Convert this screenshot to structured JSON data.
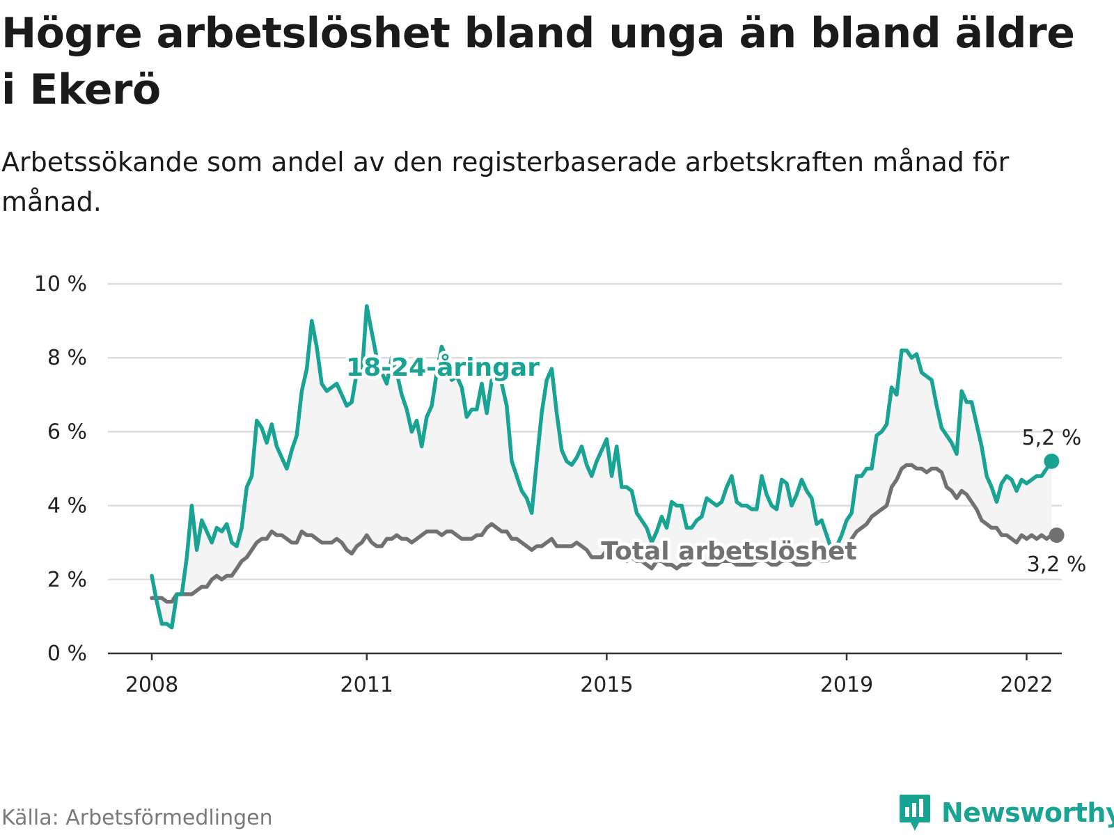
{
  "title": "Högre arbetslöshet bland unga än bland äldre i Ekerö",
  "subtitle": "Arbetssökande som andel av den registerbaserade arbetskraften månad för månad.",
  "source": "Källa: Arbetsförmedlingen",
  "brand": "Newsworthy",
  "colors": {
    "youth": "#18a393",
    "total": "#737073",
    "fill": "#f4f4f4",
    "grid": "#dcdcdc",
    "axis": "#333333"
  },
  "chart_data": {
    "type": "line",
    "title": "Högre arbetslöshet bland unga än bland äldre i Ekerö",
    "xlabel": "",
    "ylabel": "",
    "ylim": [
      0,
      10
    ],
    "yticks": [
      {
        "value": 0,
        "label": "0 %"
      },
      {
        "value": 2,
        "label": "2 %"
      },
      {
        "value": 4,
        "label": "4 %"
      },
      {
        "value": 6,
        "label": "6 %"
      },
      {
        "value": 8,
        "label": "8 %"
      },
      {
        "value": 10,
        "label": "10 %"
      }
    ],
    "xlim": [
      "2008-01",
      "2022-12"
    ],
    "xticks": [
      {
        "value": "2008-01",
        "label": "2008"
      },
      {
        "value": "2011-08",
        "label": "2011"
      },
      {
        "value": "2015-08",
        "label": "2015"
      },
      {
        "value": "2019-08",
        "label": "2019"
      },
      {
        "value": "2022-08",
        "label": "2022"
      }
    ],
    "series": [
      {
        "name": "18-24-åringar",
        "key": "youth",
        "end_label": "5,2 %",
        "start": "2008-01",
        "values": [
          2.1,
          1.4,
          0.8,
          0.8,
          0.7,
          1.6,
          1.6,
          2.6,
          4.0,
          2.8,
          3.6,
          3.3,
          3.0,
          3.4,
          3.3,
          3.5,
          3.0,
          2.9,
          3.4,
          4.5,
          4.8,
          6.3,
          6.1,
          5.7,
          6.2,
          5.6,
          5.3,
          5.0,
          5.5,
          5.9,
          7.1,
          7.7,
          9.0,
          8.3,
          7.3,
          7.1,
          7.2,
          7.3,
          7.0,
          6.7,
          6.8,
          7.6,
          7.5,
          9.4,
          8.7,
          8.0,
          7.6,
          7.3,
          8.0,
          7.6,
          7.0,
          6.6,
          6.0,
          6.3,
          5.6,
          6.4,
          6.7,
          7.6,
          8.3,
          8.0,
          7.4,
          7.5,
          7.2,
          6.4,
          6.6,
          6.6,
          7.3,
          6.5,
          7.4,
          7.6,
          7.3,
          6.7,
          5.2,
          4.8,
          4.4,
          4.2,
          3.8,
          5.2,
          6.5,
          7.4,
          7.7,
          6.5,
          5.5,
          5.2,
          5.1,
          5.3,
          5.6,
          5.1,
          4.8,
          5.2,
          5.5,
          5.8,
          4.8,
          5.6,
          4.5,
          4.5,
          4.4,
          3.8,
          3.6,
          3.4,
          3.0,
          3.3,
          3.7,
          3.4,
          4.1,
          4.0,
          4.0,
          3.4,
          3.4,
          3.6,
          3.7,
          4.2,
          4.1,
          4.0,
          4.1,
          4.5,
          4.8,
          4.1,
          4.0,
          4.0,
          3.9,
          3.9,
          4.8,
          4.3,
          4.0,
          3.9,
          4.7,
          4.6,
          4.0,
          4.3,
          4.7,
          4.4,
          4.2,
          3.5,
          3.6,
          3.2,
          2.8,
          2.9,
          3.2,
          3.6,
          3.8,
          4.8,
          4.8,
          5.0,
          5.0,
          5.9,
          6.0,
          6.2,
          7.2,
          7.0,
          8.2,
          8.2,
          8.0,
          8.1,
          7.6,
          7.5,
          7.4,
          6.7,
          6.1,
          5.9,
          5.7,
          5.4,
          7.1,
          6.8,
          6.8,
          6.2,
          5.6,
          4.8,
          4.5,
          4.1,
          4.6,
          4.8,
          4.7,
          4.4,
          4.7,
          4.6,
          4.7,
          4.8,
          4.8,
          5.0,
          5.2
        ]
      },
      {
        "name": "Total arbetslöshet",
        "key": "total",
        "end_label": "3,2 %",
        "start": "2008-01",
        "values": [
          1.5,
          1.5,
          1.5,
          1.4,
          1.4,
          1.6,
          1.6,
          1.6,
          1.6,
          1.7,
          1.8,
          1.8,
          2.0,
          2.1,
          2.0,
          2.1,
          2.1,
          2.3,
          2.5,
          2.6,
          2.8,
          3.0,
          3.1,
          3.1,
          3.3,
          3.2,
          3.2,
          3.1,
          3.0,
          3.0,
          3.3,
          3.2,
          3.2,
          3.1,
          3.0,
          3.0,
          3.0,
          3.1,
          3.0,
          2.8,
          2.7,
          2.9,
          3.0,
          3.2,
          3.0,
          2.9,
          2.9,
          3.1,
          3.1,
          3.2,
          3.1,
          3.1,
          3.0,
          3.1,
          3.2,
          3.3,
          3.3,
          3.3,
          3.2,
          3.3,
          3.3,
          3.2,
          3.1,
          3.1,
          3.1,
          3.2,
          3.2,
          3.4,
          3.5,
          3.4,
          3.3,
          3.3,
          3.1,
          3.1,
          3.0,
          2.9,
          2.8,
          2.9,
          2.9,
          3.0,
          3.1,
          2.9,
          2.9,
          2.9,
          2.9,
          3.0,
          2.9,
          2.8,
          2.6,
          2.6,
          2.6,
          2.8,
          2.7,
          2.7,
          2.6,
          2.5,
          2.6,
          2.5,
          2.5,
          2.4,
          2.3,
          2.5,
          2.5,
          2.4,
          2.4,
          2.3,
          2.4,
          2.4,
          2.5,
          2.6,
          2.5,
          2.4,
          2.4,
          2.4,
          2.5,
          2.5,
          2.5,
          2.4,
          2.4,
          2.4,
          2.4,
          2.5,
          2.5,
          2.5,
          2.4,
          2.4,
          2.5,
          2.5,
          2.5,
          2.4,
          2.4,
          2.4,
          2.5,
          2.6,
          2.5,
          2.5,
          2.6,
          2.7,
          2.8,
          2.9,
          3.1,
          3.3,
          3.4,
          3.5,
          3.7,
          3.8,
          3.9,
          4.0,
          4.5,
          4.7,
          5.0,
          5.1,
          5.1,
          5.0,
          5.0,
          4.9,
          5.0,
          5.0,
          4.9,
          4.5,
          4.4,
          4.2,
          4.4,
          4.3,
          4.1,
          3.9,
          3.6,
          3.5,
          3.4,
          3.4,
          3.2,
          3.2,
          3.1,
          3.0,
          3.2,
          3.1,
          3.2,
          3.1,
          3.2,
          3.1,
          3.2,
          3.2
        ]
      }
    ]
  }
}
